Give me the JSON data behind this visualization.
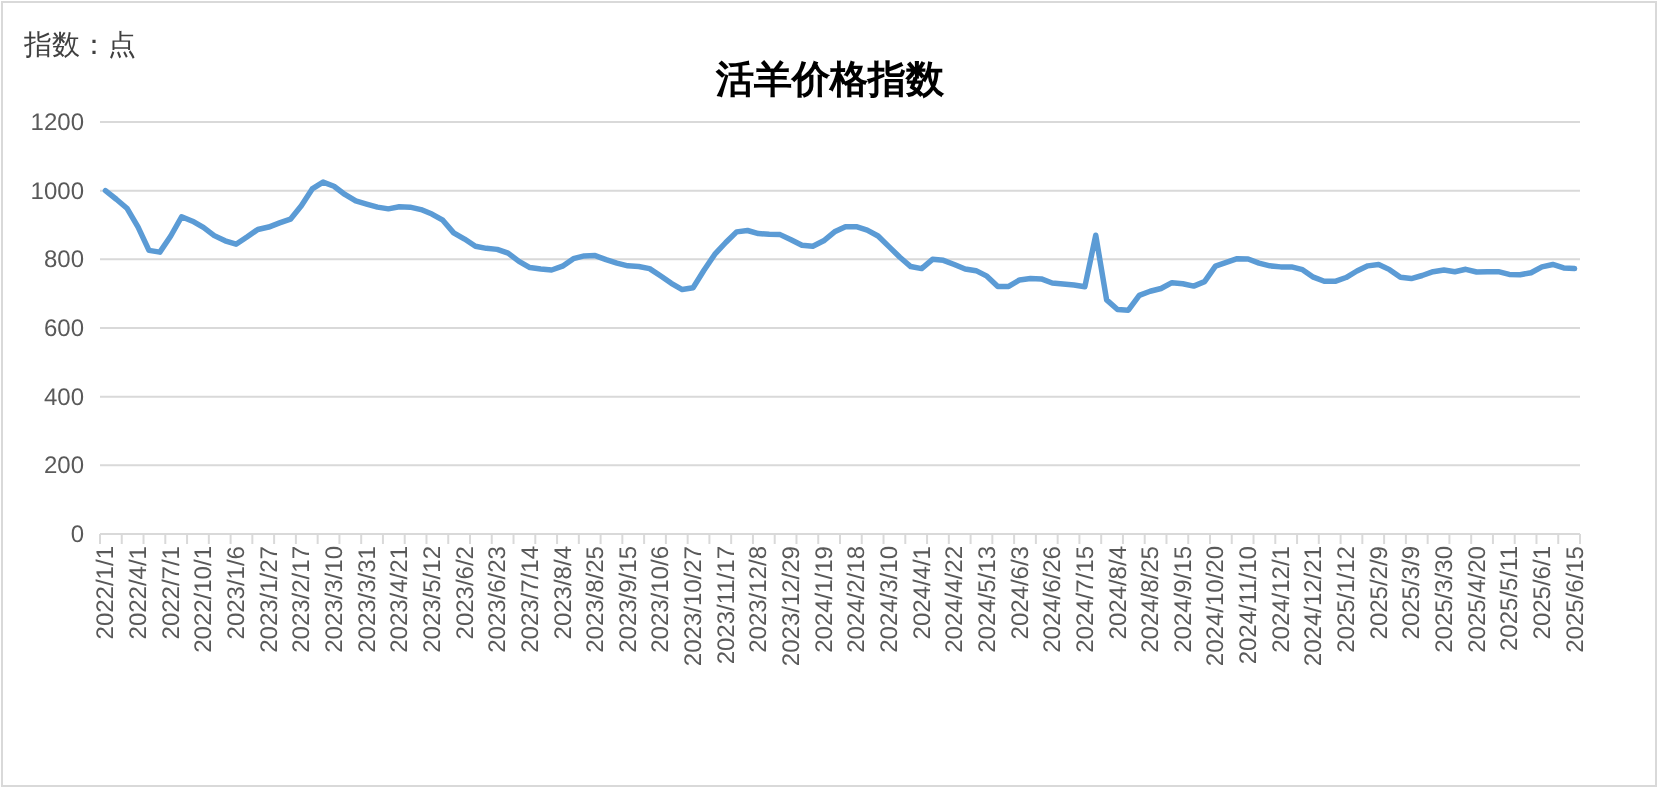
{
  "chart_data": {
    "type": "line",
    "title": "活羊价格指数",
    "annotations": [
      "指数：点"
    ],
    "categories": [
      "2022/1/1",
      null,
      null,
      "2022/4/1",
      null,
      null,
      "2022/7/1",
      null,
      null,
      "2022/10/1",
      null,
      null,
      "2023/1/6",
      null,
      null,
      "2023/1/27",
      null,
      null,
      "2023/2/17",
      null,
      null,
      "2023/3/10",
      null,
      null,
      "2023/3/31",
      null,
      null,
      "2023/4/21",
      null,
      null,
      "2023/5/12",
      null,
      null,
      "2023/6/2",
      null,
      null,
      "2023/6/23",
      null,
      null,
      "2023/7/14",
      null,
      null,
      "2023/8/4",
      null,
      null,
      "2023/8/25",
      null,
      null,
      "2023/9/15",
      null,
      null,
      "2023/10/6",
      null,
      null,
      "2023/10/27",
      null,
      null,
      "2023/11/17",
      null,
      null,
      "2023/12/8",
      null,
      null,
      "2023/12/29",
      null,
      null,
      "2024/1/19",
      null,
      null,
      "2024/2/18",
      null,
      null,
      "2024/3/10",
      null,
      null,
      "2024/4/1",
      null,
      null,
      "2024/4/22",
      null,
      null,
      "2024/5/13",
      null,
      null,
      "2024/6/3",
      null,
      null,
      "2024/6/26",
      null,
      null,
      "2024/7/15",
      null,
      null,
      "2024/8/4",
      null,
      null,
      "2024/8/25",
      null,
      null,
      "2024/9/15",
      null,
      null,
      "2024/10/20",
      null,
      null,
      "2024/11/10",
      null,
      null,
      "2024/12/1",
      null,
      null,
      "2024/12/21",
      null,
      null,
      "2025/1/12",
      null,
      null,
      "2025/2/9",
      null,
      null,
      "2025/3/9",
      null,
      null,
      "2025/3/30",
      null,
      null,
      "2025/4/20",
      null,
      null,
      "2025/5/11",
      null,
      null,
      "2025/6/1",
      null,
      null,
      "2025/6/15"
    ],
    "series": [
      {
        "color": "#5b9bd5",
        "values": [
          1000,
          975,
          948,
          894,
          826,
          821,
          868,
          924,
          911,
          893,
          869,
          854,
          844,
          865,
          887,
          894,
          906,
          917,
          956,
          1005,
          1025,
          1013,
          989,
          970,
          961,
          952,
          947,
          953,
          952,
          945,
          932,
          914,
          877,
          859,
          838,
          832,
          829,
          818,
          794,
          776,
          772,
          769,
          780,
          802,
          810,
          811,
          799,
          789,
          781,
          779,
          773,
          752,
          730,
          712,
          717,
          768,
          815,
          849,
          880,
          884,
          875,
          873,
          872,
          857,
          841,
          838,
          854,
          880,
          895,
          895,
          885,
          868,
          837,
          806,
          779,
          773,
          800,
          797,
          785,
          772,
          767,
          751,
          721,
          721,
          740,
          744,
          743,
          731,
          728,
          725,
          720,
          870,
          682,
          654,
          652,
          695,
          707,
          715,
          732,
          729,
          722,
          735,
          780,
          791,
          802,
          801,
          789,
          781,
          778,
          778,
          770,
          748,
          736,
          736,
          747,
          766,
          781,
          785,
          770,
          748,
          744,
          753,
          764,
          769,
          764,
          771,
          763,
          764,
          764,
          756,
          755,
          761,
          778,
          785,
          775,
          773
        ]
      }
    ],
    "ylim": [
      0,
      1200
    ],
    "yticks": [
      0,
      200,
      400,
      600,
      800,
      1000,
      1200
    ],
    "grid": "y"
  }
}
